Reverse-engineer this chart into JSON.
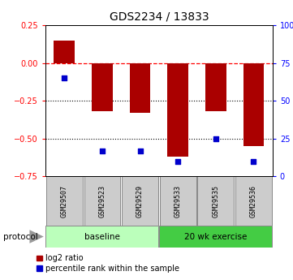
{
  "title": "GDS2234 / 13833",
  "samples": [
    "GSM29507",
    "GSM29523",
    "GSM29529",
    "GSM29533",
    "GSM29535",
    "GSM29536"
  ],
  "log2_ratio": [
    0.15,
    -0.32,
    -0.33,
    -0.62,
    -0.32,
    -0.55
  ],
  "percentile_rank": [
    65,
    17,
    17,
    10,
    25,
    10
  ],
  "bar_color": "#aa0000",
  "scatter_color": "#0000cc",
  "ylim_left": [
    -0.75,
    0.25
  ],
  "ylim_right": [
    0,
    100
  ],
  "yticks_left": [
    0.25,
    0.0,
    -0.25,
    -0.5,
    -0.75
  ],
  "yticks_right": [
    100,
    75,
    50,
    25,
    0
  ],
  "baseline_label": "baseline",
  "exercise_label": "20 wk exercise",
  "baseline_color": "#bbffbb",
  "exercise_color": "#44cc44",
  "protocol_label": "protocol",
  "legend_bar_label": "log2 ratio",
  "legend_scatter_label": "percentile rank within the sample",
  "title_fontsize": 10,
  "tick_fontsize": 7,
  "sample_fontsize": 6,
  "protocol_fontsize": 7.5,
  "legend_fontsize": 7
}
